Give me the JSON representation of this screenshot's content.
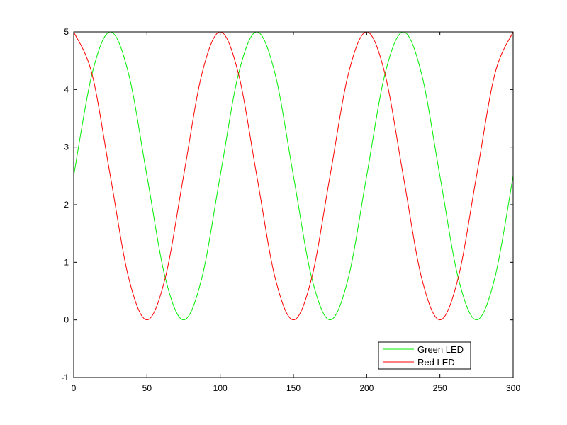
{
  "chart_data": {
    "type": "line",
    "title": "",
    "xlabel": "",
    "ylabel": "",
    "xlim": [
      0,
      300
    ],
    "ylim": [
      -1,
      5
    ],
    "x_ticks": [
      0,
      50,
      100,
      150,
      200,
      250,
      300
    ],
    "y_ticks": [
      -1,
      0,
      1,
      2,
      3,
      4,
      5
    ],
    "grid": false,
    "legend_position": "bottom-right",
    "series": [
      {
        "name": "Green LED",
        "color": "#00ee00",
        "x": [
          0,
          12.5,
          25,
          37.5,
          50,
          62.5,
          75,
          87.5,
          100,
          112.5,
          125,
          137.5,
          150,
          162.5,
          175,
          187.5,
          200,
          212.5,
          225,
          237.5,
          250,
          262.5,
          275,
          287.5,
          300
        ],
        "values": [
          2.5,
          4.27,
          5,
          4.27,
          2.5,
          0.73,
          0,
          0.73,
          2.5,
          4.27,
          5,
          4.27,
          2.5,
          0.73,
          0,
          0.73,
          2.5,
          4.27,
          5,
          4.27,
          2.5,
          0.73,
          0,
          0.73,
          2.5
        ]
      },
      {
        "name": "Red LED",
        "color": "#ff0000",
        "x": [
          0,
          12.5,
          25,
          37.5,
          50,
          62.5,
          75,
          87.5,
          100,
          112.5,
          125,
          137.5,
          150,
          162.5,
          175,
          187.5,
          200,
          212.5,
          225,
          237.5,
          250,
          262.5,
          275,
          287.5,
          300
        ],
        "values": [
          5,
          4.27,
          2.5,
          0.73,
          0,
          0.73,
          2.5,
          4.27,
          5,
          4.27,
          2.5,
          0.73,
          0,
          0.73,
          2.5,
          4.27,
          5,
          4.27,
          2.5,
          0.73,
          0,
          0.73,
          2.5,
          4.27,
          5
        ]
      }
    ]
  }
}
